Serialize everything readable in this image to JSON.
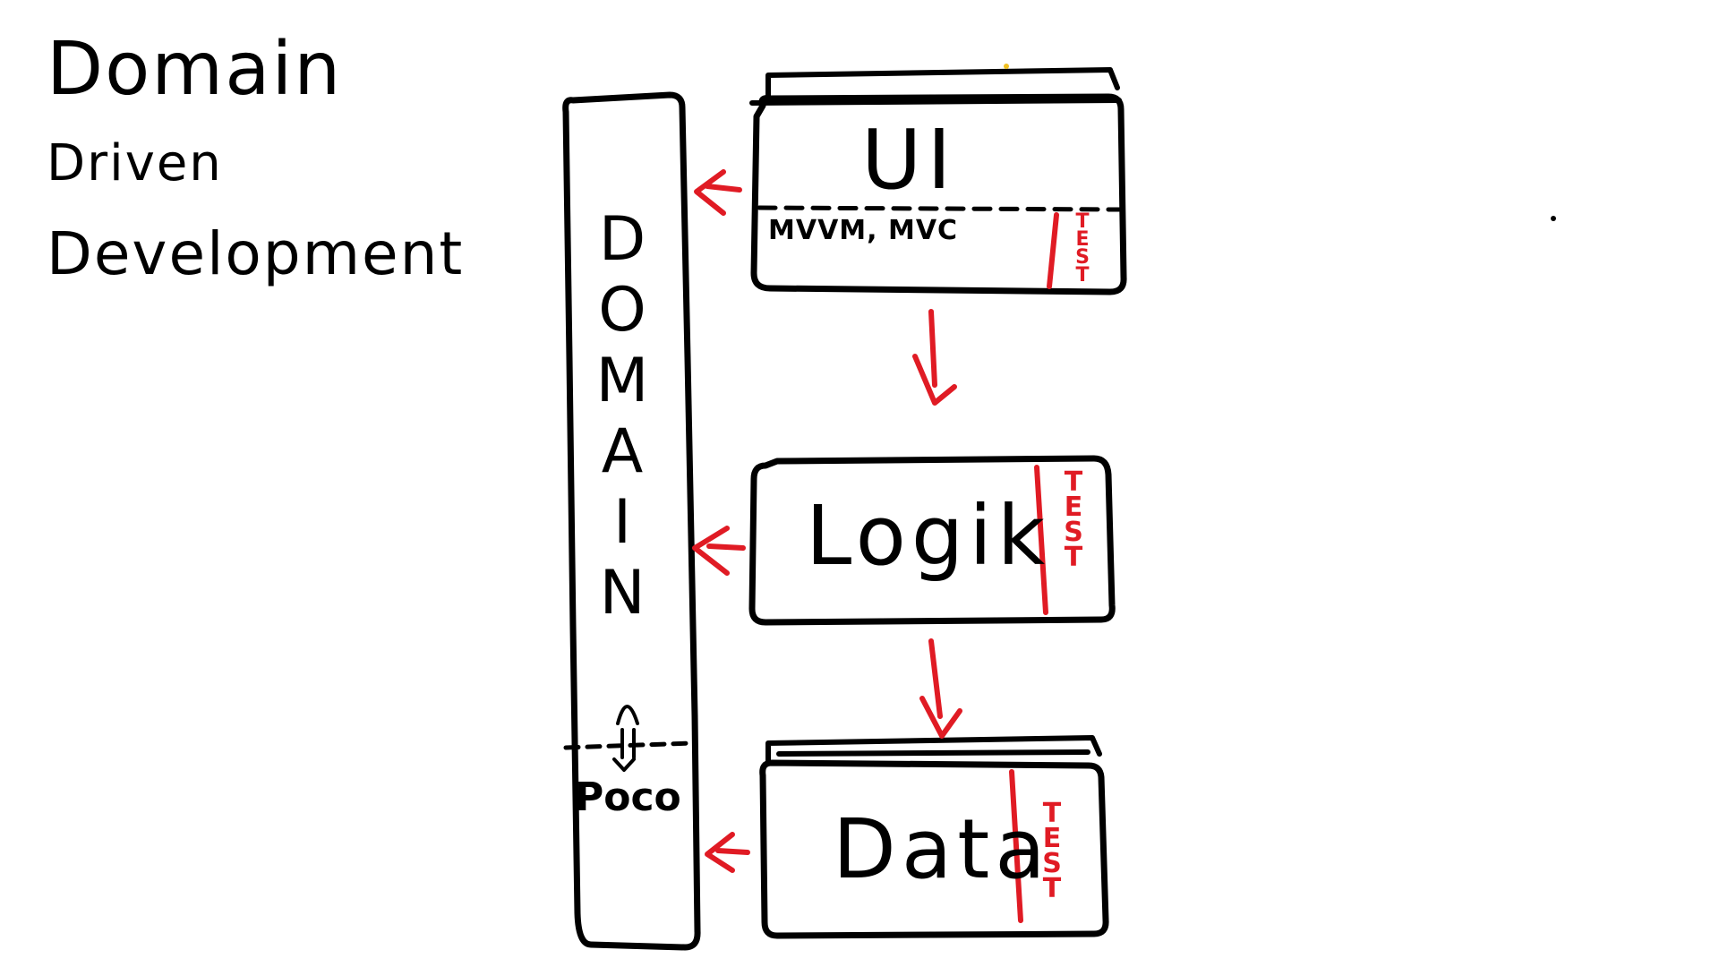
{
  "title": {
    "line1": "Domain",
    "line2": "Driven",
    "line3": "Development"
  },
  "domain_pillar": {
    "letters": [
      "D",
      "O",
      "M",
      "A",
      "I",
      "N"
    ],
    "sub_label": "Poco"
  },
  "layers": {
    "ui": {
      "label": "UI",
      "sub_label": "MVVM, MVC",
      "test_label": "TEST"
    },
    "logik": {
      "label": "Logik",
      "test_label": "TEST"
    },
    "data": {
      "label": "Data",
      "test_label": "TEST"
    }
  },
  "colors": {
    "ink": "#000000",
    "accent": "#e01b24",
    "background": "#ffffff"
  }
}
